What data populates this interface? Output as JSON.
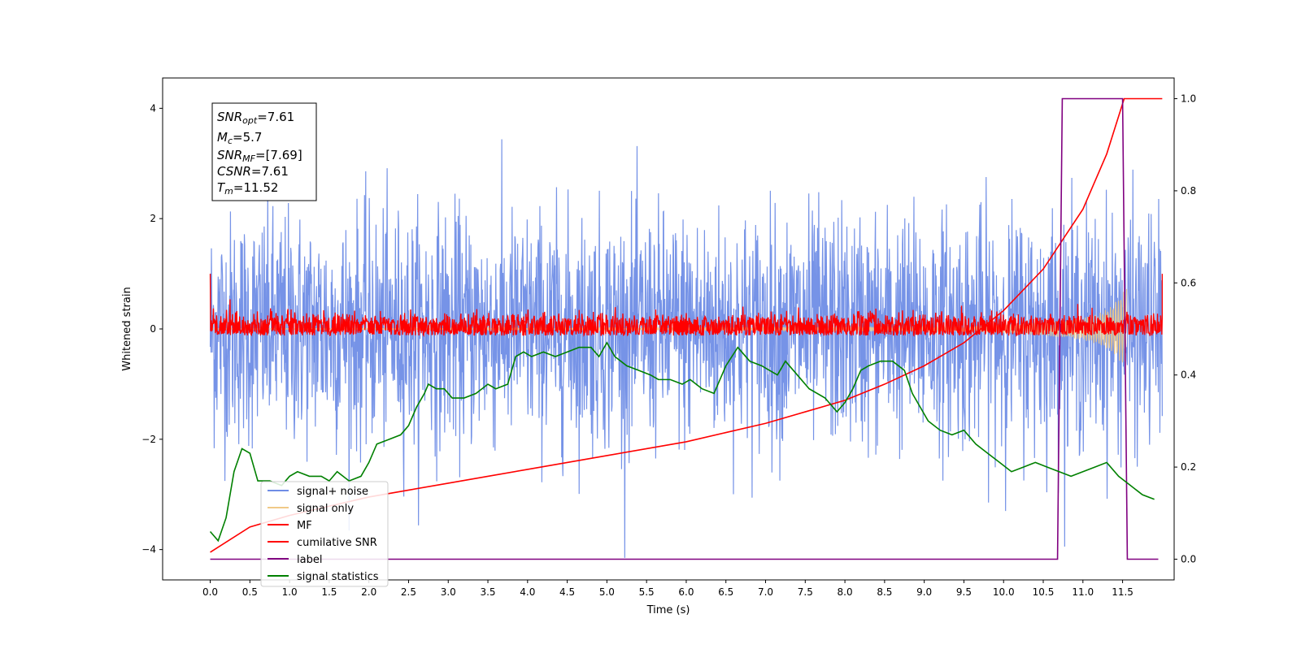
{
  "chart_data": {
    "type": "line",
    "xlabel": "Time (s)",
    "ylabel": "Whitened strain",
    "xlim": [
      -0.6,
      12.15
    ],
    "ylim": [
      -4.55,
      4.55
    ],
    "y2lim": [
      -0.045,
      1.045
    ],
    "x_ticks": [
      "0.0",
      "0.5",
      "1.0",
      "1.5",
      "2.0",
      "2.5",
      "3.0",
      "3.5",
      "4.0",
      "4.5",
      "5.0",
      "5.5",
      "6.0",
      "6.5",
      "7.0",
      "7.5",
      "8.0",
      "8.5",
      "9.0",
      "9.5",
      "10.0",
      "10.5",
      "11.0",
      "11.5"
    ],
    "y_ticks": [
      "4",
      "2",
      "0",
      "−2",
      "−4"
    ],
    "y2_ticks": [
      "1.0",
      "0.8",
      "0.6",
      "0.4",
      "0.2",
      "0.0"
    ],
    "grid": false,
    "legend_placement": "lower-left",
    "annotation": {
      "lines": [
        {
          "main": "SNR",
          "sub": "opt",
          "rest": "=7.61"
        },
        {
          "main": "M",
          "sub": "c",
          "rest": "=5.7"
        },
        {
          "main": "SNR",
          "sub": "MF",
          "rest": "=[7.69]"
        },
        {
          "main": "CSNR",
          "sub": "",
          "rest": "=7.61"
        },
        {
          "main": "T",
          "sub": "m",
          "rest": "=11.52"
        }
      ]
    },
    "series": [
      {
        "name": "signal+ noise",
        "axis": "left",
        "color": "#6f8de6",
        "description_kind": "white noise, std ~1, range -4.1 to 4.1, t 0-12"
      },
      {
        "name": "signal only",
        "axis": "left",
        "color": "#f0c987",
        "envelope": {
          "t": [
            9.6,
            10.0,
            10.5,
            10.8,
            11.0,
            11.2,
            11.35,
            11.45,
            11.55
          ],
          "amp": [
            0.05,
            0.08,
            0.12,
            0.16,
            0.2,
            0.28,
            0.4,
            0.55,
            0.75
          ]
        }
      },
      {
        "name": "MF",
        "axis": "left",
        "color": "#ff0000",
        "description_kind": "matched filter output, noise band ~0 to 0.3"
      },
      {
        "name": "cumilative SNR",
        "axis": "right",
        "color": "#ff0000",
        "x": [
          0.0,
          0.5,
          1.0,
          1.5,
          2.0,
          2.5,
          3.0,
          3.5,
          4.0,
          4.5,
          5.0,
          5.5,
          6.0,
          6.5,
          7.0,
          7.5,
          8.0,
          8.5,
          9.0,
          9.5,
          10.0,
          10.5,
          11.0,
          11.3,
          11.52,
          12.0
        ],
        "y": [
          0.015,
          0.07,
          0.095,
          0.115,
          0.135,
          0.15,
          0.165,
          0.18,
          0.195,
          0.21,
          0.225,
          0.24,
          0.255,
          0.275,
          0.295,
          0.32,
          0.345,
          0.38,
          0.42,
          0.47,
          0.54,
          0.63,
          0.76,
          0.88,
          1.0,
          1.0
        ]
      },
      {
        "name": "label",
        "axis": "right",
        "color": "#800080",
        "x": [
          0.0,
          10.68,
          10.74,
          11.5,
          11.56,
          11.95
        ],
        "y": [
          0.0,
          0.0,
          1.0,
          1.0,
          0.0,
          0.0
        ]
      },
      {
        "name": "signal statistics",
        "axis": "right",
        "color": "#008000",
        "x": [
          0.0,
          0.1,
          0.2,
          0.3,
          0.4,
          0.5,
          0.6,
          0.75,
          0.9,
          1.0,
          1.1,
          1.25,
          1.4,
          1.5,
          1.6,
          1.75,
          1.9,
          2.0,
          2.1,
          2.25,
          2.4,
          2.5,
          2.6,
          2.7,
          2.75,
          2.85,
          2.95,
          3.05,
          3.2,
          3.35,
          3.5,
          3.6,
          3.75,
          3.85,
          3.95,
          4.05,
          4.2,
          4.35,
          4.5,
          4.65,
          4.8,
          4.9,
          5.0,
          5.1,
          5.25,
          5.4,
          5.55,
          5.65,
          5.8,
          5.95,
          6.05,
          6.2,
          6.35,
          6.5,
          6.65,
          6.8,
          6.95,
          7.05,
          7.15,
          7.25,
          7.4,
          7.55,
          7.75,
          7.9,
          8.0,
          8.1,
          8.2,
          8.3,
          8.45,
          8.6,
          8.75,
          8.85,
          8.95,
          9.05,
          9.2,
          9.35,
          9.5,
          9.65,
          9.8,
          9.95,
          10.1,
          10.25,
          10.4,
          10.55,
          10.7,
          10.85,
          11.0,
          11.15,
          11.3,
          11.45,
          11.6,
          11.75,
          11.9
        ],
        "y": [
          0.06,
          0.04,
          0.09,
          0.19,
          0.24,
          0.23,
          0.17,
          0.17,
          0.16,
          0.18,
          0.19,
          0.18,
          0.18,
          0.17,
          0.19,
          0.17,
          0.18,
          0.21,
          0.25,
          0.26,
          0.27,
          0.29,
          0.33,
          0.36,
          0.38,
          0.37,
          0.37,
          0.35,
          0.35,
          0.36,
          0.38,
          0.37,
          0.38,
          0.44,
          0.45,
          0.44,
          0.45,
          0.44,
          0.45,
          0.46,
          0.46,
          0.44,
          0.47,
          0.44,
          0.42,
          0.41,
          0.4,
          0.39,
          0.39,
          0.38,
          0.39,
          0.37,
          0.36,
          0.42,
          0.46,
          0.43,
          0.42,
          0.41,
          0.4,
          0.43,
          0.4,
          0.37,
          0.35,
          0.32,
          0.34,
          0.37,
          0.41,
          0.42,
          0.43,
          0.43,
          0.41,
          0.36,
          0.33,
          0.3,
          0.28,
          0.27,
          0.28,
          0.25,
          0.23,
          0.21,
          0.19,
          0.2,
          0.21,
          0.2,
          0.19,
          0.18,
          0.19,
          0.2,
          0.21,
          0.18,
          0.16,
          0.14,
          0.13
        ]
      }
    ]
  }
}
